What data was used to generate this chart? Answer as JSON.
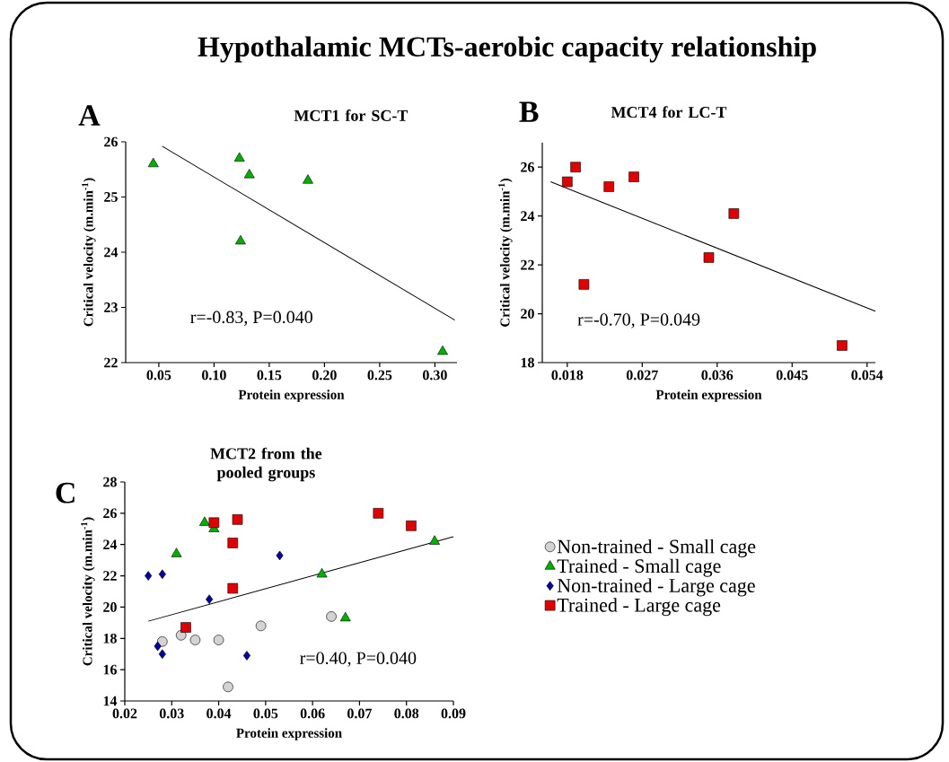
{
  "chart_data": [
    {
      "type": "scatter",
      "title": "Hypothalamic MCTs-aerobic capacity relationship",
      "subtitle": "MCT1 for SC-T",
      "xlabel": "Protein expression",
      "ylabel": "Critical velocity  (m.min$^{-1}$)",
      "annotations": [
        "A",
        "r=-0.83, P=0.040"
      ],
      "xlim": [
        0.02,
        0.32
      ],
      "ylim": [
        22,
        26
      ],
      "xticks": [
        0.05,
        {
          "value": 0.1,
          "label": "0.10"
        },
        0.15,
        {
          "value": 0.2,
          "label": "0.20"
        },
        0.25,
        {
          "value": 0.3,
          "label": "0.30"
        }
      ],
      "yticks": [
        22,
        23,
        24,
        25,
        26
      ],
      "series": [
        {
          "color": "#00b000",
          "marker": "triangle",
          "x": [
            0.045,
            0.123,
            0.132,
            0.185,
            0.124,
            0.307
          ],
          "values": [
            25.6,
            25.7,
            25.4,
            25.3,
            24.2,
            22.2
          ]
        },
        {
          "type": "line",
          "color": "#000000",
          "marker": "none",
          "line_style": "solid",
          "x": [
            0.053,
            0.318
          ],
          "values": [
            25.92,
            22.77
          ]
        }
      ]
    },
    {
      "type": "scatter",
      "title": "MCT4 for LC-T",
      "xlabel": "Protein expression",
      "ylabel": "Critical velocity  (m.min$^{-1}$)",
      "annotations": [
        "B",
        "r=-0.70, P=0.049"
      ],
      "xlim": [
        0.015,
        0.055
      ],
      "ylim": [
        18,
        27
      ],
      "xticks": [
        0.018,
        0.027,
        0.036,
        0.045,
        0.054
      ],
      "yticks": [
        18,
        20,
        22,
        24,
        26
      ],
      "series": [
        {
          "color": "#e00000",
          "marker": "square",
          "x": [
            0.018,
            0.019,
            0.023,
            0.026,
            0.02,
            0.035,
            0.038,
            0.051
          ],
          "values": [
            25.4,
            26.0,
            25.2,
            25.6,
            21.2,
            22.3,
            24.1,
            18.7
          ]
        },
        {
          "type": "line",
          "color": "#000000",
          "marker": "none",
          "line_style": "solid",
          "x": [
            0.016,
            0.055
          ],
          "values": [
            25.4,
            20.1
          ]
        }
      ]
    },
    {
      "type": "scatter",
      "title": "MCT2 from the pooled groups",
      "xlabel": "Protein expression",
      "ylabel": "Critical velocity  (m.min$^{-1}$)",
      "annotations": [
        "C",
        "r=0.40, P=0.040"
      ],
      "xlim": [
        0.02,
        0.09
      ],
      "ylim": [
        14,
        28
      ],
      "xticks": [
        {
          "value": 0.02,
          "label": "0.02"
        },
        {
          "value": 0.03,
          "label": "0.03"
        },
        {
          "value": 0.04,
          "label": "0.04"
        },
        {
          "value": 0.05,
          "label": "0.05"
        },
        {
          "value": 0.06,
          "label": "0.06"
        },
        {
          "value": 0.07,
          "label": "0.07"
        },
        {
          "value": 0.08,
          "label": "0.08"
        },
        {
          "value": 0.09,
          "label": "0.09"
        }
      ],
      "yticks": [
        14,
        16,
        18,
        20,
        22,
        24,
        26,
        28
      ],
      "legend": "right",
      "series": [
        {
          "name": "Non-trained - Small cage",
          "color": "#d3d3d3",
          "marker": "circle",
          "x": [
            0.028,
            0.032,
            0.035,
            0.04,
            0.042,
            0.049,
            0.064
          ],
          "values": [
            17.8,
            18.2,
            17.9,
            17.9,
            14.9,
            18.8,
            19.4
          ]
        },
        {
          "name": "Trained - Small cage",
          "color": "#00b000",
          "marker": "triangle",
          "x": [
            0.031,
            0.037,
            0.039,
            0.062,
            0.067,
            0.086
          ],
          "values": [
            23.4,
            25.4,
            25.0,
            22.1,
            19.3,
            24.2
          ]
        },
        {
          "name": "Non-trained - Large cage",
          "color": "#0000a0",
          "marker": "diamond",
          "x": [
            0.025,
            0.028,
            0.027,
            0.028,
            0.038,
            0.046,
            0.053
          ],
          "values": [
            22.0,
            22.1,
            17.5,
            17.0,
            20.5,
            16.9,
            23.3
          ]
        },
        {
          "name": "Trained - Large cage",
          "color": "#e00000",
          "marker": "square",
          "x": [
            0.033,
            0.039,
            0.043,
            0.043,
            0.044,
            0.074,
            0.081
          ],
          "values": [
            18.7,
            25.4,
            24.1,
            21.2,
            25.6,
            26.0,
            25.2
          ]
        },
        {
          "type": "line",
          "color": "#000000",
          "marker": "none",
          "line_style": "solid",
          "x": [
            0.025,
            0.09
          ],
          "values": [
            19.1,
            24.5
          ]
        }
      ]
    }
  ]
}
